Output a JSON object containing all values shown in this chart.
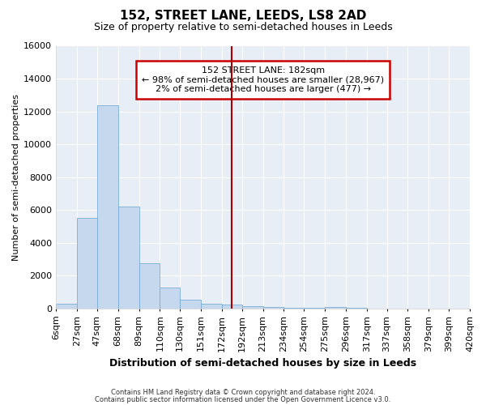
{
  "title": "152, STREET LANE, LEEDS, LS8 2AD",
  "subtitle": "Size of property relative to semi-detached houses in Leeds",
  "xlabel": "Distribution of semi-detached houses by size in Leeds",
  "ylabel": "Number of semi-detached properties",
  "bar_color": "#c5d8ee",
  "bar_edge_color": "#7aadd4",
  "background_color": "#e8eef5",
  "grid_color": "#ffffff",
  "vline_x": 182,
  "vline_color": "#aa0000",
  "annotation_title": "152 STREET LANE: 182sqm",
  "annotation_line1": "← 98% of semi-detached houses are smaller (28,967)",
  "annotation_line2": "2% of semi-detached houses are larger (477) →",
  "annotation_box_color": "#cc0000",
  "bin_edges": [
    6,
    27,
    47,
    68,
    89,
    110,
    130,
    151,
    172,
    192,
    213,
    234,
    254,
    275,
    296,
    317,
    337,
    358,
    379,
    399,
    420
  ],
  "bin_labels": [
    "6sqm",
    "27sqm",
    "47sqm",
    "68sqm",
    "89sqm",
    "110sqm",
    "130sqm",
    "151sqm",
    "172sqm",
    "192sqm",
    "213sqm",
    "234sqm",
    "254sqm",
    "275sqm",
    "296sqm",
    "317sqm",
    "337sqm",
    "358sqm",
    "379sqm",
    "399sqm",
    "420sqm"
  ],
  "counts": [
    320,
    5500,
    12400,
    6200,
    2750,
    1300,
    560,
    290,
    230,
    170,
    100,
    60,
    60,
    110,
    50,
    20,
    0,
    0,
    0,
    0
  ],
  "ylim": [
    0,
    16000
  ],
  "yticks": [
    0,
    2000,
    4000,
    6000,
    8000,
    10000,
    12000,
    14000,
    16000
  ],
  "footnote1": "Contains HM Land Registry data © Crown copyright and database right 2024.",
  "footnote2": "Contains public sector information licensed under the Open Government Licence v3.0.",
  "title_fontsize": 11,
  "subtitle_fontsize": 9,
  "xlabel_fontsize": 9,
  "ylabel_fontsize": 8,
  "tick_fontsize": 8,
  "annot_fontsize": 8,
  "footnote_fontsize": 6
}
